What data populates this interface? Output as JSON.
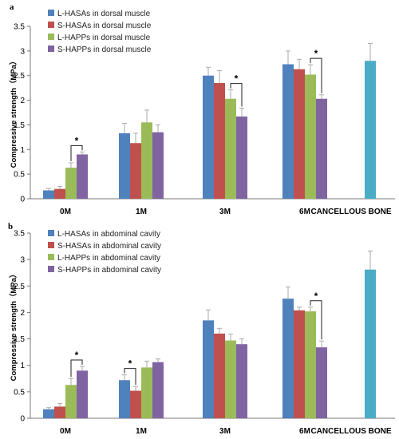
{
  "colors": {
    "s0": "#4f81bd",
    "s1": "#c0504d",
    "s2": "#9bbb59",
    "s3": "#8064a2",
    "bone": "#4bacc6",
    "error": "#aaaaaa",
    "axis": "#777777"
  },
  "chart_data": [
    {
      "panel": "a",
      "type": "bar",
      "ylabel": "Compressive strength（MPa）",
      "ylim": [
        0,
        3.5
      ],
      "yticks": [
        "0",
        "0.5",
        "1",
        "1.5",
        "2",
        "2.5",
        "3",
        "3.5"
      ],
      "categories": [
        "0M",
        "1M",
        "3M",
        "6M",
        "CANCELLOUS BONE"
      ],
      "legend_position": "top-left",
      "series": [
        {
          "name": "L-HASAs in dorsal muscle",
          "values": [
            0.17,
            1.33,
            2.5,
            2.73,
            null
          ],
          "errors": [
            0.04,
            0.2,
            0.17,
            0.27,
            null
          ]
        },
        {
          "name": "S-HASAs in dorsal muscle",
          "values": [
            0.2,
            1.13,
            2.35,
            2.63,
            null
          ],
          "errors": [
            0.05,
            0.2,
            0.25,
            0.2,
            null
          ]
        },
        {
          "name": "L-HAPPs in dorsal muscle",
          "values": [
            0.63,
            1.55,
            2.03,
            2.52,
            null
          ],
          "errors": [
            0.1,
            0.25,
            0.18,
            0.2,
            null
          ]
        },
        {
          "name": "S-HAPPs in dorsal muscle",
          "values": [
            0.9,
            1.35,
            1.67,
            2.03,
            null
          ],
          "errors": [
            0.05,
            0.15,
            0.17,
            0.08,
            null
          ]
        },
        {
          "name": "",
          "values": [
            null,
            null,
            null,
            null,
            2.8
          ],
          "errors": [
            null,
            null,
            null,
            null,
            0.35
          ]
        }
      ],
      "annotations": [
        {
          "text": "*",
          "category": 0,
          "from": 2,
          "to": 3
        },
        {
          "text": "*",
          "category": 2,
          "from": 2,
          "to": 3
        },
        {
          "text": "*",
          "category": 3,
          "from": 2,
          "to": 3
        }
      ]
    },
    {
      "panel": "b",
      "type": "bar",
      "ylabel": "Compressive strength（MPa）",
      "ylim": [
        0,
        3.5
      ],
      "yticks": [
        "0",
        "0.5",
        "1",
        "1.5",
        "2",
        "2.5",
        "3",
        "3.5"
      ],
      "categories": [
        "0M",
        "1M",
        "3M",
        "6M",
        "CANCELLOUS BONE"
      ],
      "legend_position": "top-left",
      "series": [
        {
          "name": "L-HASAs in abdominal cavity",
          "values": [
            0.17,
            0.72,
            1.85,
            2.26,
            null
          ],
          "errors": [
            0.03,
            0.1,
            0.2,
            0.22,
            null
          ]
        },
        {
          "name": "S-HASAs in abdominal cavity",
          "values": [
            0.22,
            0.52,
            1.6,
            2.04,
            null
          ],
          "errors": [
            0.06,
            0.08,
            0.1,
            0.06,
            null
          ]
        },
        {
          "name": "L-HAPPs in abdominal cavity",
          "values": [
            0.63,
            0.96,
            1.47,
            2.02,
            null
          ],
          "errors": [
            0.12,
            0.12,
            0.12,
            0.08,
            null
          ]
        },
        {
          "name": "S-HAPPs in abdominal cavity",
          "values": [
            0.9,
            1.06,
            1.4,
            1.34,
            null
          ],
          "errors": [
            0.08,
            0.06,
            0.1,
            0.12,
            null
          ]
        },
        {
          "name": "",
          "values": [
            null,
            null,
            null,
            null,
            2.81
          ],
          "errors": [
            null,
            null,
            null,
            null,
            0.35
          ]
        }
      ],
      "annotations": [
        {
          "text": "*",
          "category": 0,
          "from": 2,
          "to": 3
        },
        {
          "text": "*",
          "category": 1,
          "from": 0,
          "to": 1
        },
        {
          "text": "*",
          "category": 3,
          "from": 2,
          "to": 3
        }
      ]
    }
  ]
}
